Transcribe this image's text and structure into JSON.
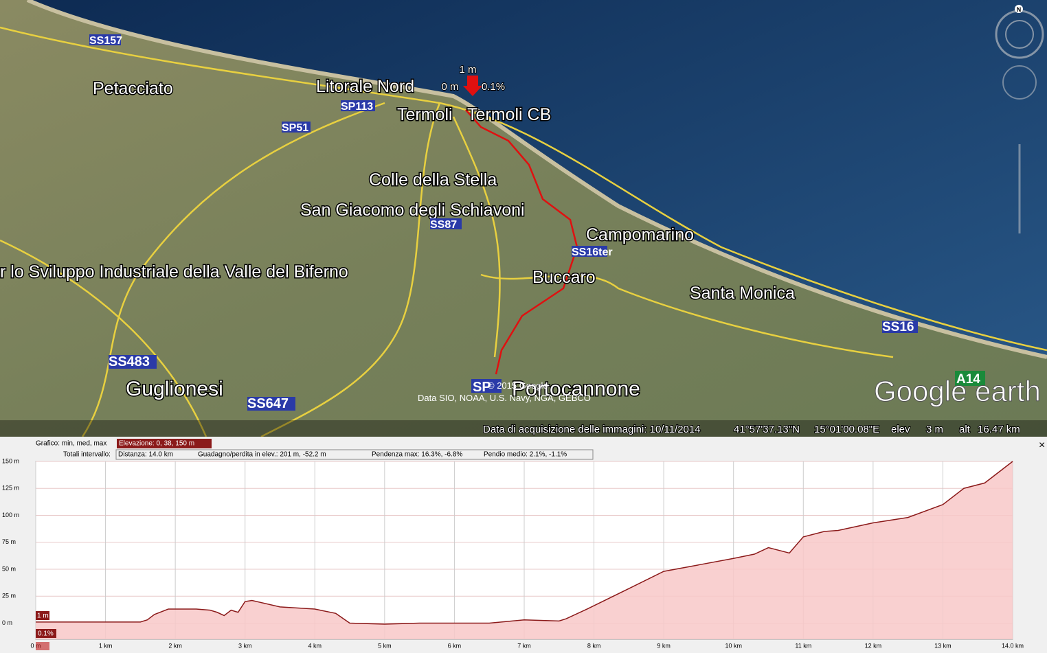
{
  "map": {
    "places": [
      "Petacciato",
      "Litorale Nord",
      "Termoli",
      "Termoli CB",
      "Colle della Stella",
      "San Giacomo degli Schiavoni",
      "Campomarino",
      "r lo Sviluppo Industriale della Valle del Biferno",
      "Buccaro",
      "Santa Monica",
      "Guglionesi",
      "Portocannone"
    ],
    "roads": [
      "SS157",
      "SP113",
      "SP51",
      "SS87",
      "SS16ter",
      "SS16",
      "SS483",
      "SS647",
      "A14",
      "SP"
    ],
    "marker": {
      "elevation": "1 m",
      "start": "0 m",
      "slope": "0.1%"
    },
    "copyright": "© 2015 Google",
    "data_sources": "Data SIO, NOAA, U.S. Navy, NGA, GEBCO",
    "logo": "Google earth",
    "compass": "N"
  },
  "status_bar": {
    "imagery_date": "Data di acquisizione delle immagini: 10/11/2014",
    "lat": "41°57'37.13\"N",
    "lon": "15°01'00.08\"E",
    "elev_label": "elev",
    "elev": "3 m",
    "alt_label": "alt",
    "alt": "16.47 km"
  },
  "profile_header": {
    "graph_label": "Grafico: min, med, max",
    "elevation": "Elevazione: 0, 38, 150 m",
    "totals_label": "Totali intervallo:",
    "distance": "Distanza: 14.0 km",
    "gain_loss": "Guadagno/perdita in elev.: 201 m, -52.2 m",
    "max_slope": "Pendenza max: 16.3%, -6.8%",
    "avg_slope": "Pendio medio: 2.1%, -1.1%",
    "cursor_elev": "1 m",
    "cursor_slope": "0.1%",
    "close": "×"
  },
  "chart_data": {
    "type": "area",
    "color": "#8b1a1a",
    "fill": "#f8c8c8",
    "grid": true,
    "x": [
      0,
      0.5,
      1,
      1.5,
      1.6,
      1.7,
      1.9,
      2.0,
      2.3,
      2.5,
      2.6,
      2.7,
      2.8,
      2.9,
      3.0,
      3.1,
      3.5,
      4.0,
      4.3,
      4.5,
      5.0,
      5.5,
      6.0,
      6.5,
      7.0,
      7.5,
      7.6,
      7.9,
      8.5,
      9.0,
      9.5,
      10.0,
      10.3,
      10.5,
      10.8,
      11.0,
      11.3,
      11.5,
      12.0,
      12.5,
      13.0,
      13.3,
      13.6,
      14.0
    ],
    "values": [
      1,
      1,
      1,
      1,
      3,
      8,
      13,
      13,
      13,
      12,
      10,
      7,
      12,
      10,
      20,
      21,
      15,
      13,
      9,
      0,
      -1,
      0,
      0,
      0,
      3,
      2,
      4,
      13,
      32,
      48,
      54,
      60,
      64,
      70,
      65,
      80,
      85,
      86,
      93,
      98,
      110,
      125,
      130,
      150
    ],
    "xlim": [
      0,
      14
    ],
    "ylim": [
      -15,
      150
    ],
    "xticks": [
      {
        "value": 0,
        "label": "0 m"
      },
      {
        "value": 1,
        "label": "1 km"
      },
      {
        "value": 2,
        "label": "2 km"
      },
      {
        "value": 3,
        "label": "3 km"
      },
      {
        "value": 4,
        "label": "4 km"
      },
      {
        "value": 5,
        "label": "5 km"
      },
      {
        "value": 6,
        "label": "6 km"
      },
      {
        "value": 7,
        "label": "7 km"
      },
      {
        "value": 8,
        "label": "8 km"
      },
      {
        "value": 9,
        "label": "9 km"
      },
      {
        "value": 10,
        "label": "10 km"
      },
      {
        "value": 11,
        "label": "11 km"
      },
      {
        "value": 12,
        "label": "12 km"
      },
      {
        "value": 13,
        "label": "13 km"
      },
      {
        "value": 14,
        "label": "14.0 km"
      }
    ],
    "yticks": [
      {
        "value": 0,
        "label": "0 m"
      },
      {
        "value": 25,
        "label": "25 m"
      },
      {
        "value": 50,
        "label": "50 m"
      },
      {
        "value": 75,
        "label": "75 m"
      },
      {
        "value": 100,
        "label": "100 m"
      },
      {
        "value": 125,
        "label": "125 m"
      },
      {
        "value": 150,
        "label": "150 m"
      }
    ]
  }
}
